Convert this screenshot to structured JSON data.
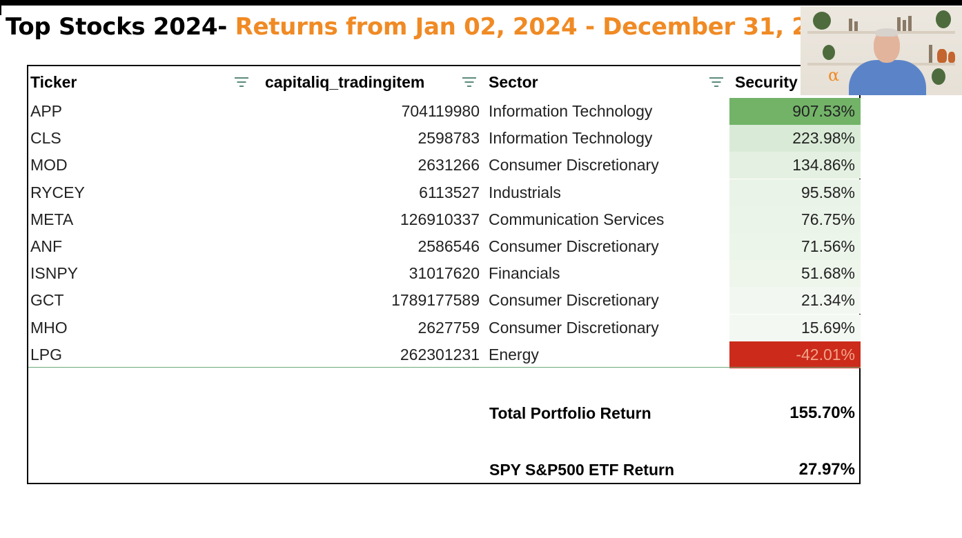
{
  "title": {
    "main": "Top Stocks 2024- ",
    "highlight": "Returns from Jan 02, 2024 - December 31, 2024"
  },
  "table": {
    "headers": {
      "ticker": "Ticker",
      "tradingitem": "capitaliq_tradingitem",
      "sector": "Sector",
      "security": "Security Return"
    },
    "rows": [
      {
        "ticker": "APP",
        "id": "704119980",
        "sector": "Information Technology",
        "return": "907.53%",
        "bg": "#72b368",
        "fg": "#222222"
      },
      {
        "ticker": "CLS",
        "id": "2598783",
        "sector": "Information Technology",
        "return": "223.98%",
        "bg": "#d9ebd6",
        "fg": "#222222"
      },
      {
        "ticker": "MOD",
        "id": "2631266",
        "sector": "Consumer Discretionary",
        "return": "134.86%",
        "bg": "#e4f1e2",
        "fg": "#222222"
      },
      {
        "ticker": "RYCEY",
        "id": "6113527",
        "sector": "Industrials",
        "return": "95.58%",
        "bg": "#e9f3e7",
        "fg": "#222222"
      },
      {
        "ticker": "META",
        "id": "126910337",
        "sector": "Communication Services",
        "return": "76.75%",
        "bg": "#ebf4e9",
        "fg": "#222222"
      },
      {
        "ticker": "ANF",
        "id": "2586546",
        "sector": "Consumer Discretionary",
        "return": "71.56%",
        "bg": "#ecf5ea",
        "fg": "#222222"
      },
      {
        "ticker": "ISNPY",
        "id": "31017620",
        "sector": "Financials",
        "return": "51.68%",
        "bg": "#eef6ec",
        "fg": "#222222"
      },
      {
        "ticker": "GCT",
        "id": "1789177589",
        "sector": "Consumer Discretionary",
        "return": "21.34%",
        "bg": "#f2f8f1",
        "fg": "#222222"
      },
      {
        "ticker": "MHO",
        "id": "2627759",
        "sector": "Consumer Discretionary",
        "return": "15.69%",
        "bg": "#f3f9f2",
        "fg": "#222222"
      },
      {
        "ticker": "LPG",
        "id": "262301231",
        "sector": "Energy",
        "return": "-42.01%",
        "bg": "#cc2a1a",
        "fg": "#f3a48a"
      }
    ]
  },
  "summary": {
    "portfolio_label": "Total Portfolio Return",
    "portfolio_value": "155.70%",
    "spy_label": "SPY S&P500 ETF Return",
    "spy_value": "27.97%"
  },
  "webcam": {
    "logo_glyph": "α"
  }
}
